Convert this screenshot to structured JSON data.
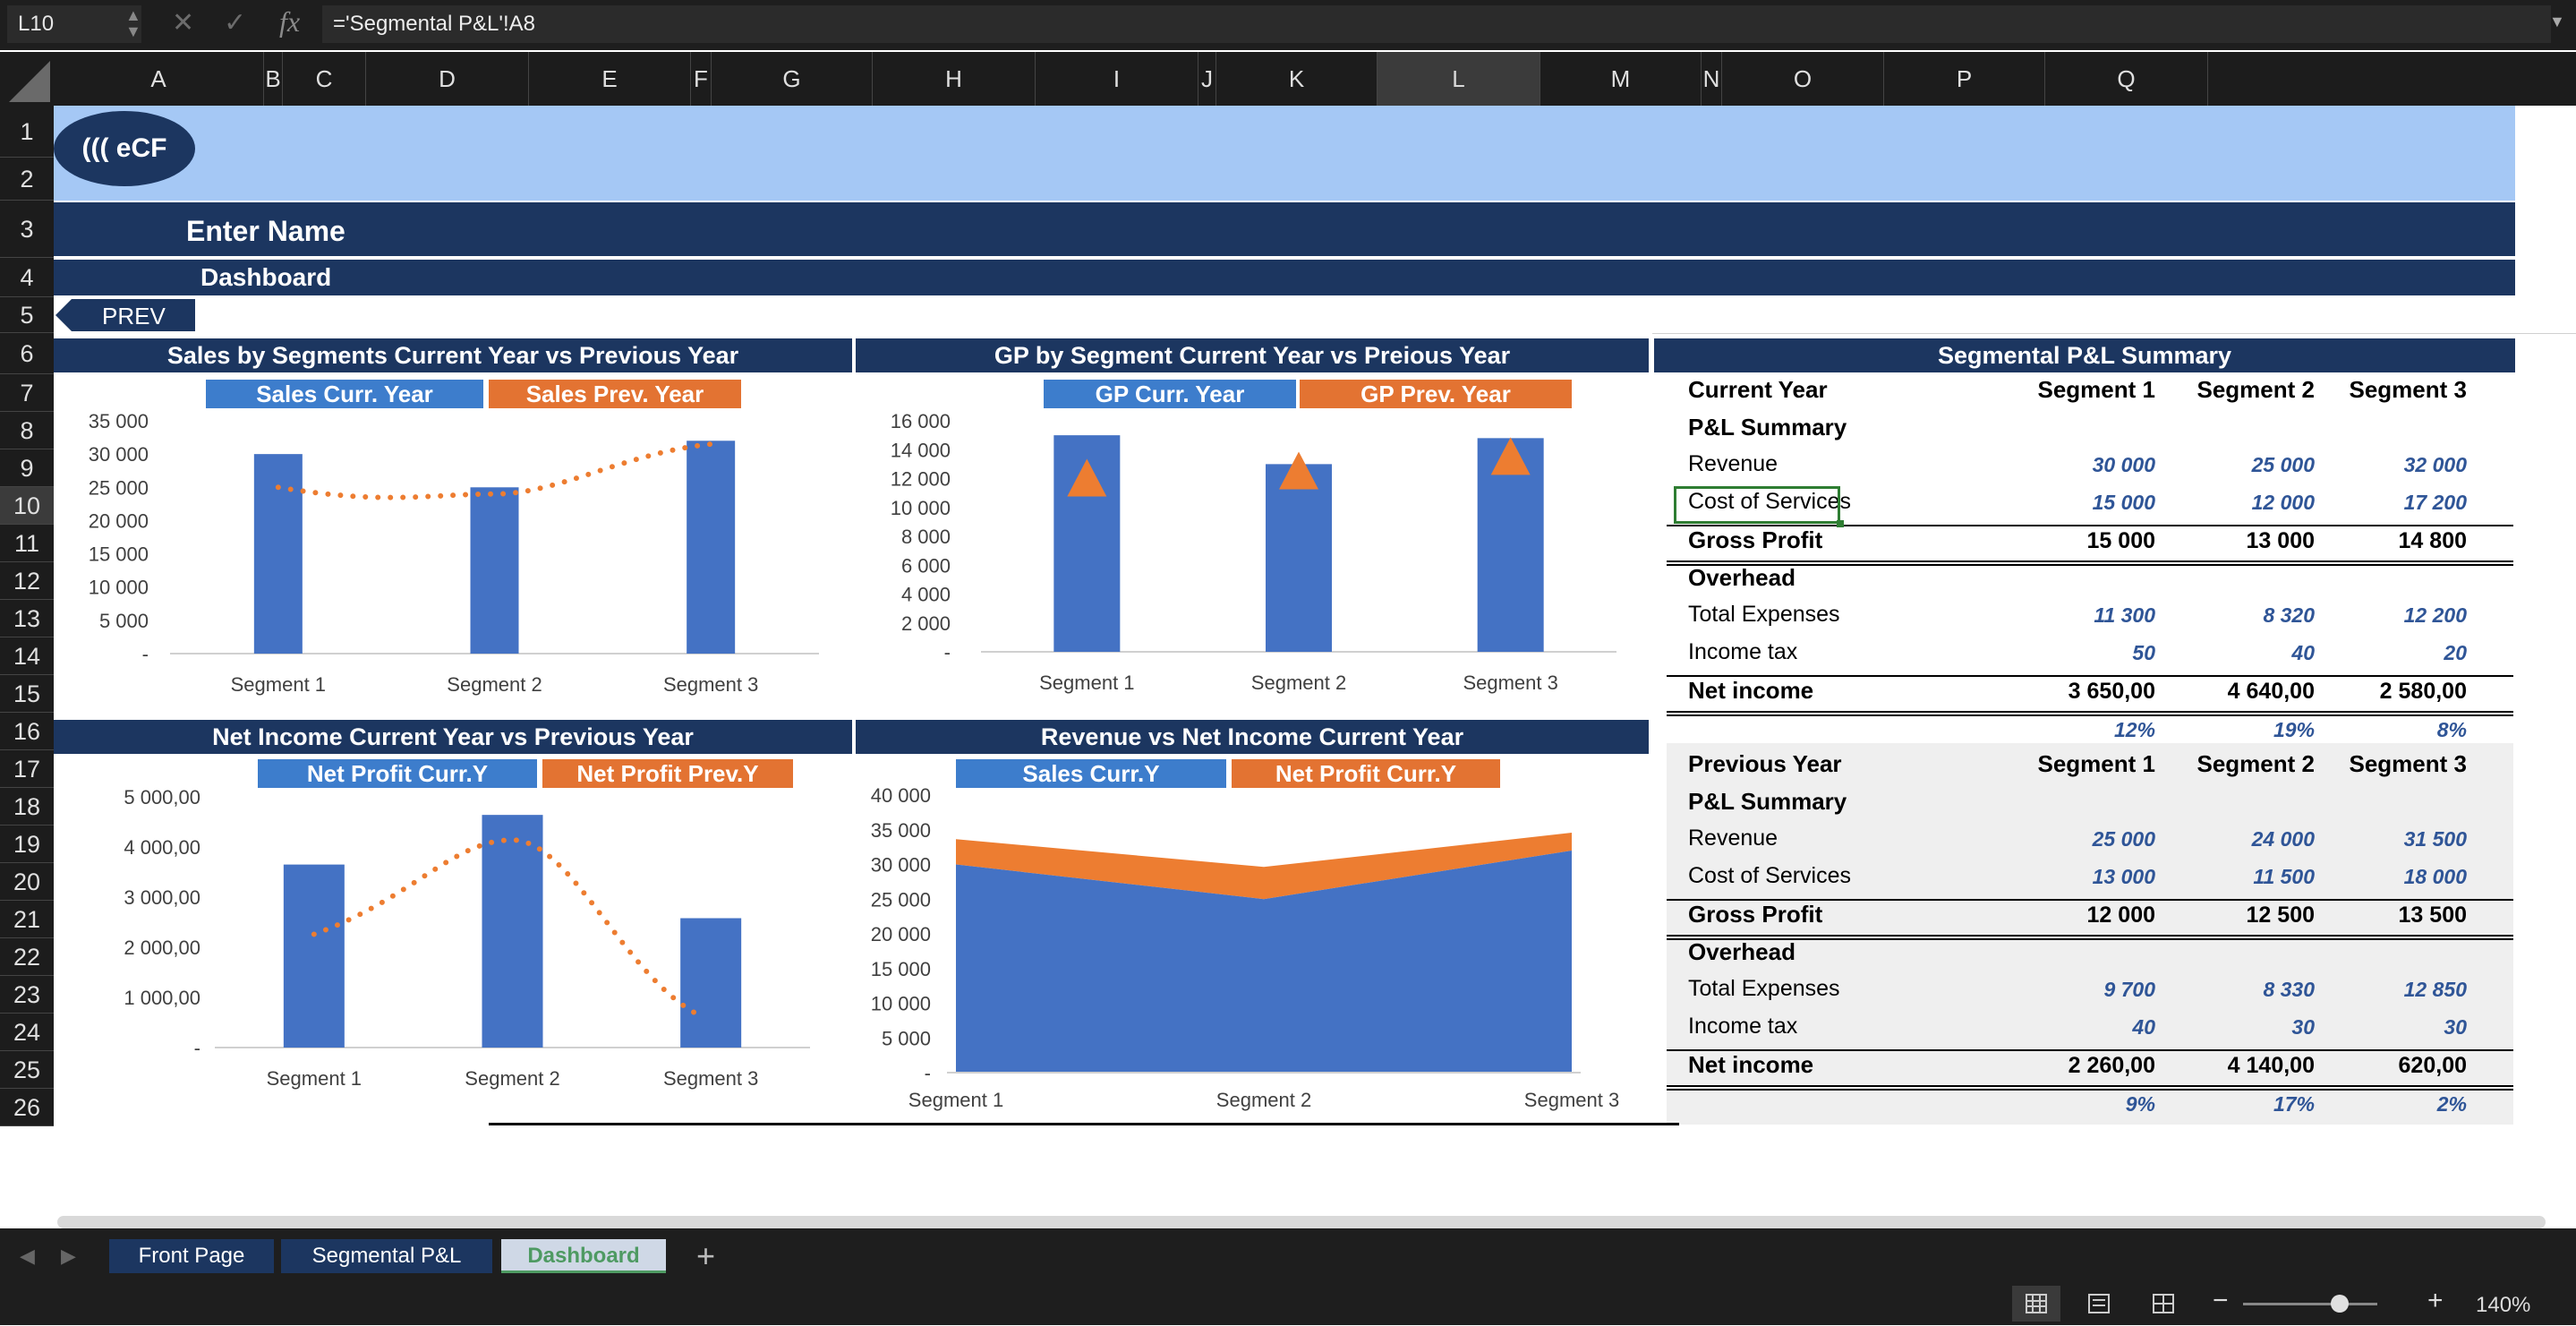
{
  "formula_bar": {
    "cell_ref": "L10",
    "formula": "='Segmental P&L'!A8",
    "cancel_icon": "x-icon",
    "enter_icon": "check-icon",
    "fx_label": "fx"
  },
  "columns": [
    "A",
    "B",
    "C",
    "D",
    "E",
    "F",
    "G",
    "H",
    "I",
    "J",
    "K",
    "L",
    "M",
    "N",
    "O",
    "P",
    "Q"
  ],
  "rows": [
    "1",
    "2",
    "3",
    "4",
    "5",
    "6",
    "7",
    "8",
    "9",
    "10",
    "11",
    "12",
    "13",
    "14",
    "15",
    "16",
    "17",
    "18",
    "19",
    "20",
    "21",
    "22",
    "23",
    "24",
    "25",
    "26"
  ],
  "header": {
    "logo": "((( eCF",
    "name": "Enter Name",
    "subtitle": "Dashboard",
    "prev_button": "PREV"
  },
  "panels": {
    "sales": {
      "title": "Sales by Segments Current Year vs Previous Year",
      "legend_a": "Sales Curr. Year",
      "legend_b": "Sales Prev. Year"
    },
    "gp": {
      "title": "GP by Segment Current Year vs Preious Year",
      "legend_a": "GP Curr. Year",
      "legend_b": "GP Prev. Year"
    },
    "netincome": {
      "title": "Net Income Current Year vs Previous Year",
      "legend_a": "Net Profit  Curr.Y",
      "legend_b": "Net Profit Prev.Y"
    },
    "revni": {
      "title": "Revenue vs Net Income Current Year",
      "legend_a": "Sales  Curr.Y",
      "legend_b": "Net Profit Curr.Y"
    }
  },
  "chart_data": [
    {
      "type": "bar",
      "title": "Sales by Segments Current Year vs Previous Year",
      "categories": [
        "Segment 1",
        "Segment 2",
        "Segment 3"
      ],
      "series": [
        {
          "name": "Sales Curr. Year",
          "kind": "bar",
          "values": [
            30000,
            25000,
            32000
          ]
        },
        {
          "name": "Sales Prev. Year",
          "kind": "dotted-line",
          "values": [
            25000,
            24000,
            31500
          ]
        }
      ],
      "ylim": [
        0,
        35000
      ],
      "yticks": [
        "35 000",
        "30 000",
        "25 000",
        "20 000",
        "15 000",
        "10 000",
        "5 000",
        "-"
      ]
    },
    {
      "type": "bar",
      "title": "GP by Segment Current Year vs Preious Year",
      "categories": [
        "Segment 1",
        "Segment 2",
        "Segment 3"
      ],
      "series": [
        {
          "name": "GP Curr. Year",
          "kind": "bar",
          "values": [
            15000,
            13000,
            14800
          ]
        },
        {
          "name": "GP Prev. Year",
          "kind": "triangle-marker",
          "values": [
            12000,
            12500,
            13500
          ]
        }
      ],
      "ylim": [
        0,
        16000
      ],
      "yticks": [
        "16 000",
        "14 000",
        "12 000",
        "10 000",
        "8 000",
        "6 000",
        "4 000",
        "2 000",
        "-"
      ]
    },
    {
      "type": "bar",
      "title": "Net Income Current Year vs Previous Year",
      "categories": [
        "Segment 1",
        "Segment 2",
        "Segment 3"
      ],
      "series": [
        {
          "name": "Net Profit  Curr.Y",
          "kind": "bar",
          "values": [
            3650,
            4640,
            2580
          ]
        },
        {
          "name": "Net Profit Prev.Y",
          "kind": "dotted-line",
          "values": [
            2260,
            4140,
            620
          ]
        }
      ],
      "ylim": [
        0,
        5000
      ],
      "yticks": [
        "5 000,00",
        "4 000,00",
        "3 000,00",
        "2 000,00",
        "1 000,00",
        "-"
      ]
    },
    {
      "type": "area",
      "title": "Revenue vs Net Income Current Year",
      "categories": [
        "Segment 1",
        "Segment 2",
        "Segment 3"
      ],
      "series": [
        {
          "name": "Sales  Curr.Y",
          "values": [
            30000,
            25000,
            32000
          ]
        },
        {
          "name": "Net Profit Curr.Y",
          "values": [
            3650,
            4640,
            2580
          ]
        }
      ],
      "stacked": true,
      "ylim": [
        0,
        40000
      ],
      "yticks": [
        "40 000",
        "35 000",
        "30 000",
        "25 000",
        "20 000",
        "15 000",
        "10 000",
        "5 000",
        "-"
      ]
    }
  ],
  "summary": {
    "title": "Segmental P&L Summary",
    "current": {
      "label": "Current Year",
      "seg_headers": [
        "Segment 1",
        "Segment 2",
        "Segment 3"
      ],
      "pl_label": "P&L Summary",
      "revenue": {
        "label": "Revenue",
        "v": [
          "30 000",
          "25 000",
          "32 000"
        ]
      },
      "cos": {
        "label": "Cost of Services",
        "v": [
          "15 000",
          "12 000",
          "17 200"
        ]
      },
      "gross": {
        "label": "Gross Profit",
        "v": [
          "15 000",
          "13 000",
          "14 800"
        ]
      },
      "overhead": "Overhead",
      "totalexp": {
        "label": "Total Expenses",
        "v": [
          "11 300",
          "8 320",
          "12 200"
        ]
      },
      "tax": {
        "label": "Income tax",
        "v": [
          "50",
          "40",
          "20"
        ]
      },
      "net": {
        "label": "Net income",
        "v": [
          "3 650,00",
          "4 640,00",
          "2 580,00"
        ]
      },
      "margin": [
        "12%",
        "19%",
        "8%"
      ]
    },
    "previous": {
      "label": "Previous Year",
      "seg_headers": [
        "Segment 1",
        "Segment 2",
        "Segment 3"
      ],
      "pl_label": "P&L Summary",
      "revenue": {
        "label": "Revenue",
        "v": [
          "25 000",
          "24 000",
          "31 500"
        ]
      },
      "cos": {
        "label": "Cost of Services",
        "v": [
          "13 000",
          "11 500",
          "18 000"
        ]
      },
      "gross": {
        "label": "Gross Profit",
        "v": [
          "12 000",
          "12 500",
          "13 500"
        ]
      },
      "overhead": "Overhead",
      "totalexp": {
        "label": "Total Expenses",
        "v": [
          "9 700",
          "8 330",
          "12 850"
        ]
      },
      "tax": {
        "label": "Income tax",
        "v": [
          "40",
          "30",
          "30"
        ]
      },
      "net": {
        "label": "Net income",
        "v": [
          "2 260,00",
          "4 140,00",
          "620,00"
        ]
      },
      "margin": [
        "9%",
        "17%",
        "2%"
      ]
    }
  },
  "tabs": [
    "Front Page",
    "Segmental P&L",
    "Dashboard"
  ],
  "add_sheet": "+",
  "zoom": "140%",
  "colors": {
    "navy": "#1c3660",
    "banner": "#a5c8f5",
    "bar": "#4472c4",
    "orange": "#ed7d31",
    "legend_blue": "#3d7dcc",
    "selected_tab_text": "#4e9a62"
  }
}
